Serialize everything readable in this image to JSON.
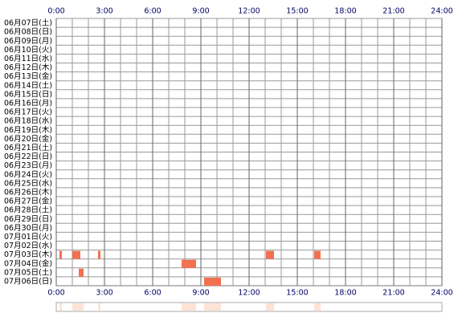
{
  "chart_data": {
    "type": "timeline",
    "categories": [
      "06月07日(土)",
      "06月08日(日)",
      "06月09日(月)",
      "06月10日(火)",
      "06月11日(水)",
      "06月12日(木)",
      "06月13日(金)",
      "06月14日(土)",
      "06月15日(日)",
      "06月16日(月)",
      "06月17日(火)",
      "06月18日(水)",
      "06月19日(木)",
      "06月20日(金)",
      "06月21日(土)",
      "06月22日(日)",
      "06月23日(月)",
      "06月24日(火)",
      "06月25日(水)",
      "06月26日(木)",
      "06月27日(金)",
      "06月28日(土)",
      "06月29日(日)",
      "06月30日(月)",
      "07月01日(火)",
      "07月02日(水)",
      "07月03日(木)",
      "07月04日(金)",
      "07月05日(土)",
      "07月06日(日)"
    ],
    "values": [
      [],
      [],
      [],
      [],
      [],
      [],
      [],
      [],
      [],
      [],
      [],
      [],
      [],
      [],
      [],
      [],
      [],
      [],
      [],
      [],
      [],
      [],
      [],
      [],
      [],
      [],
      [
        [
          0.2,
          0.35
        ],
        [
          1.0,
          1.5
        ],
        [
          2.6,
          2.75
        ],
        [
          13.05,
          13.55
        ],
        [
          16.05,
          16.45
        ]
      ],
      [
        [
          7.8,
          8.7
        ]
      ],
      [
        [
          1.4,
          1.7
        ]
      ],
      [
        [
          9.2,
          10.25
        ]
      ]
    ],
    "color": "#f2714f",
    "summary_color": "#fde3d6",
    "xlim": [
      0,
      24
    ],
    "xticks": [
      {
        "value": 0,
        "label": "0:00"
      },
      {
        "value": 3,
        "label": "3:00"
      },
      {
        "value": 6,
        "label": "6:00"
      },
      {
        "value": 9,
        "label": "9:00"
      },
      {
        "value": 12,
        "label": "12:00"
      },
      {
        "value": 15,
        "label": "15:00"
      },
      {
        "value": 18,
        "label": "18:00"
      },
      {
        "value": 21,
        "label": "21:00"
      },
      {
        "value": 24,
        "label": "24:00"
      }
    ],
    "grid": true
  }
}
